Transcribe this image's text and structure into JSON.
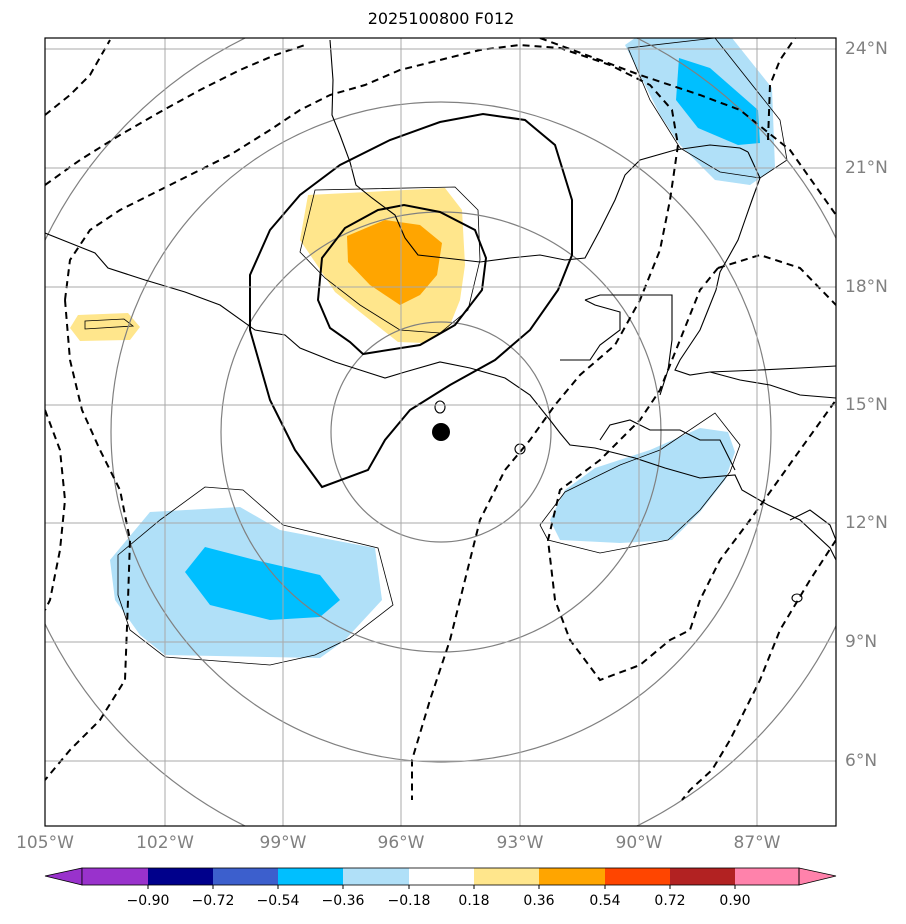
{
  "title": "2025100800 F012",
  "lon_labels": [
    "105°W",
    "102°W",
    "99°W",
    "96°W",
    "93°W",
    "90°W",
    "87°W"
  ],
  "lat_labels": [
    "24°N",
    "21°N",
    "18°N",
    "15°N",
    "12°N",
    "9°N",
    "6°N"
  ],
  "colorbar": {
    "ticks": [
      "−0.90",
      "−0.72",
      "−0.54",
      "−0.36",
      "−0.18",
      "0.18",
      "0.36",
      "0.54",
      "0.72",
      "0.90"
    ],
    "colors": [
      "#9932cc",
      "#00008b",
      "#3c5fcd",
      "#00bfff",
      "#b0e0f8",
      "#ffffff",
      "#ffe68c",
      "#ffa500",
      "#ff4500",
      "#b22222",
      "#ff82ab"
    ]
  },
  "map": {
    "extent_lon": [
      -105,
      -85
    ],
    "extent_lat": [
      4,
      24
    ],
    "center_marker": {
      "lon": -95.0,
      "lat": 14.3,
      "color": "#000000"
    }
  }
}
